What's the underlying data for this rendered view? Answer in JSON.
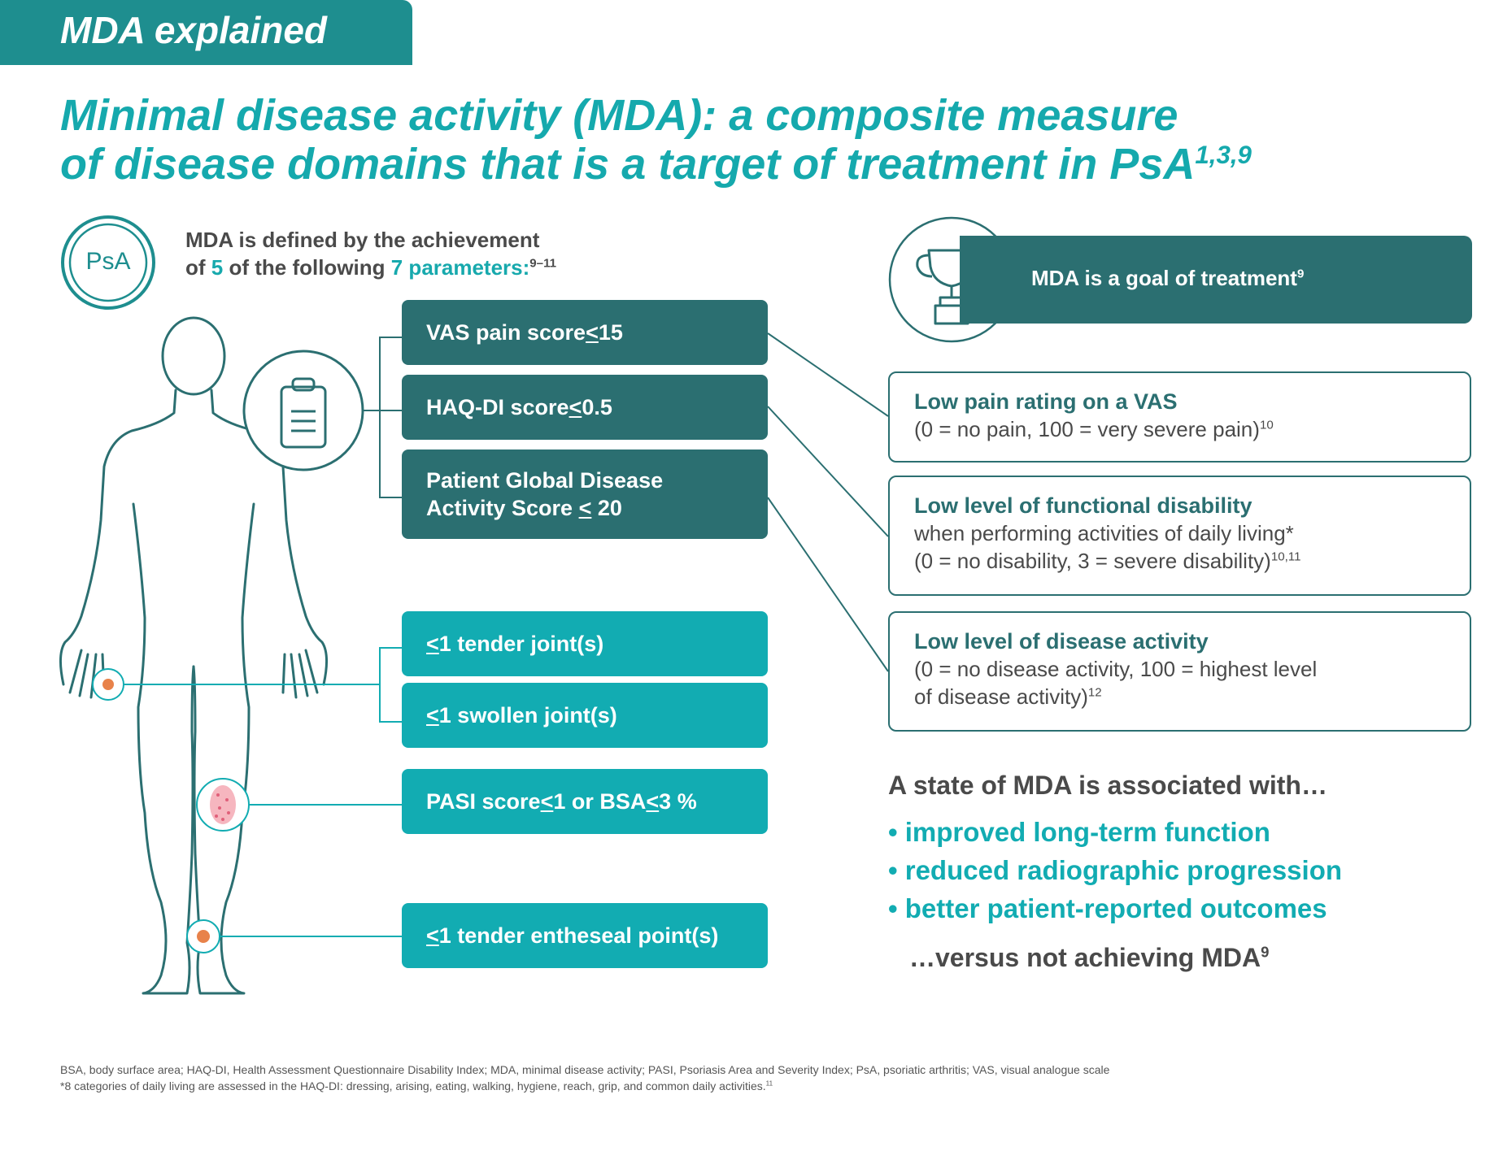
{
  "header": {
    "label": "MDA explained"
  },
  "title": {
    "line1": "Minimal disease activity (MDA): a composite measure",
    "line2": "of disease domains that is a target of treatment in PsA",
    "refs": "1,3,9"
  },
  "badge": {
    "label": "PsA"
  },
  "intro": {
    "line1": "MDA is defined by the achievement",
    "line2_a": "of ",
    "count_a": "5",
    "line2_b": " of the following ",
    "count_b": "7 parameters:",
    "refs": "9–11"
  },
  "parameters": [
    {
      "pre": "VAS pain score ",
      "sym": "<",
      "post": " 15"
    },
    {
      "pre": "HAQ-DI score ",
      "sym": "<",
      "post": " 0.5"
    },
    {
      "line1": "Patient Global Disease",
      "pre": "Activity Score ",
      "sym": "<",
      "post": " 20"
    },
    {
      "sym": "<",
      "post": " 1 tender joint(s)"
    },
    {
      "sym": "<",
      "post": " 1 swollen joint(s)"
    },
    {
      "pre": "PASI score ",
      "sym": "<",
      "mid": " 1 or BSA ",
      "sym2": "<",
      "post": " 3 %"
    },
    {
      "sym": "<",
      "post": " 1 tender entheseal point(s)"
    }
  ],
  "goal": {
    "text": "MDA is a goal of treatment",
    "ref": "9"
  },
  "outcomes": [
    {
      "title": "Low pain rating on a VAS",
      "line1": "(0 = no pain, 100 = very severe pain)",
      "ref": "10"
    },
    {
      "title": "Low level of functional disability",
      "line1": "when performing activities of daily living*",
      "line2": "(0 = no disability, 3 = severe disability)",
      "ref": "10,11"
    },
    {
      "title": "Low level of disease activity",
      "line1": "(0 = no disease activity, 100 = highest level",
      "line2": "of disease activity)",
      "ref": "12"
    }
  ],
  "association": {
    "title": "A state of MDA is associated with…",
    "bullets": [
      "• improved long-term function",
      "• reduced radiographic progression",
      "• better patient-reported outcomes"
    ],
    "closing": "…versus not achieving MDA",
    "closing_ref": "9"
  },
  "footnotes": {
    "abbreviations": "BSA, body surface area; HAQ-DI, Health Assessment Questionnaire Disability Index; MDA, minimal disease activity; PASI, Psoriasis Area and Severity Index; PsA, psoriatic arthritis; VAS, visual analogue scale",
    "note": "*8 categories of daily living are assessed in the HAQ-DI: dressing, arising, eating, walking, hygiene, reach, grip, and common daily activities.",
    "note_ref": "11"
  },
  "colors": {
    "dark_teal": "#2b6f71",
    "teal": "#12acb2",
    "text_gray": "#4a4a4a"
  }
}
